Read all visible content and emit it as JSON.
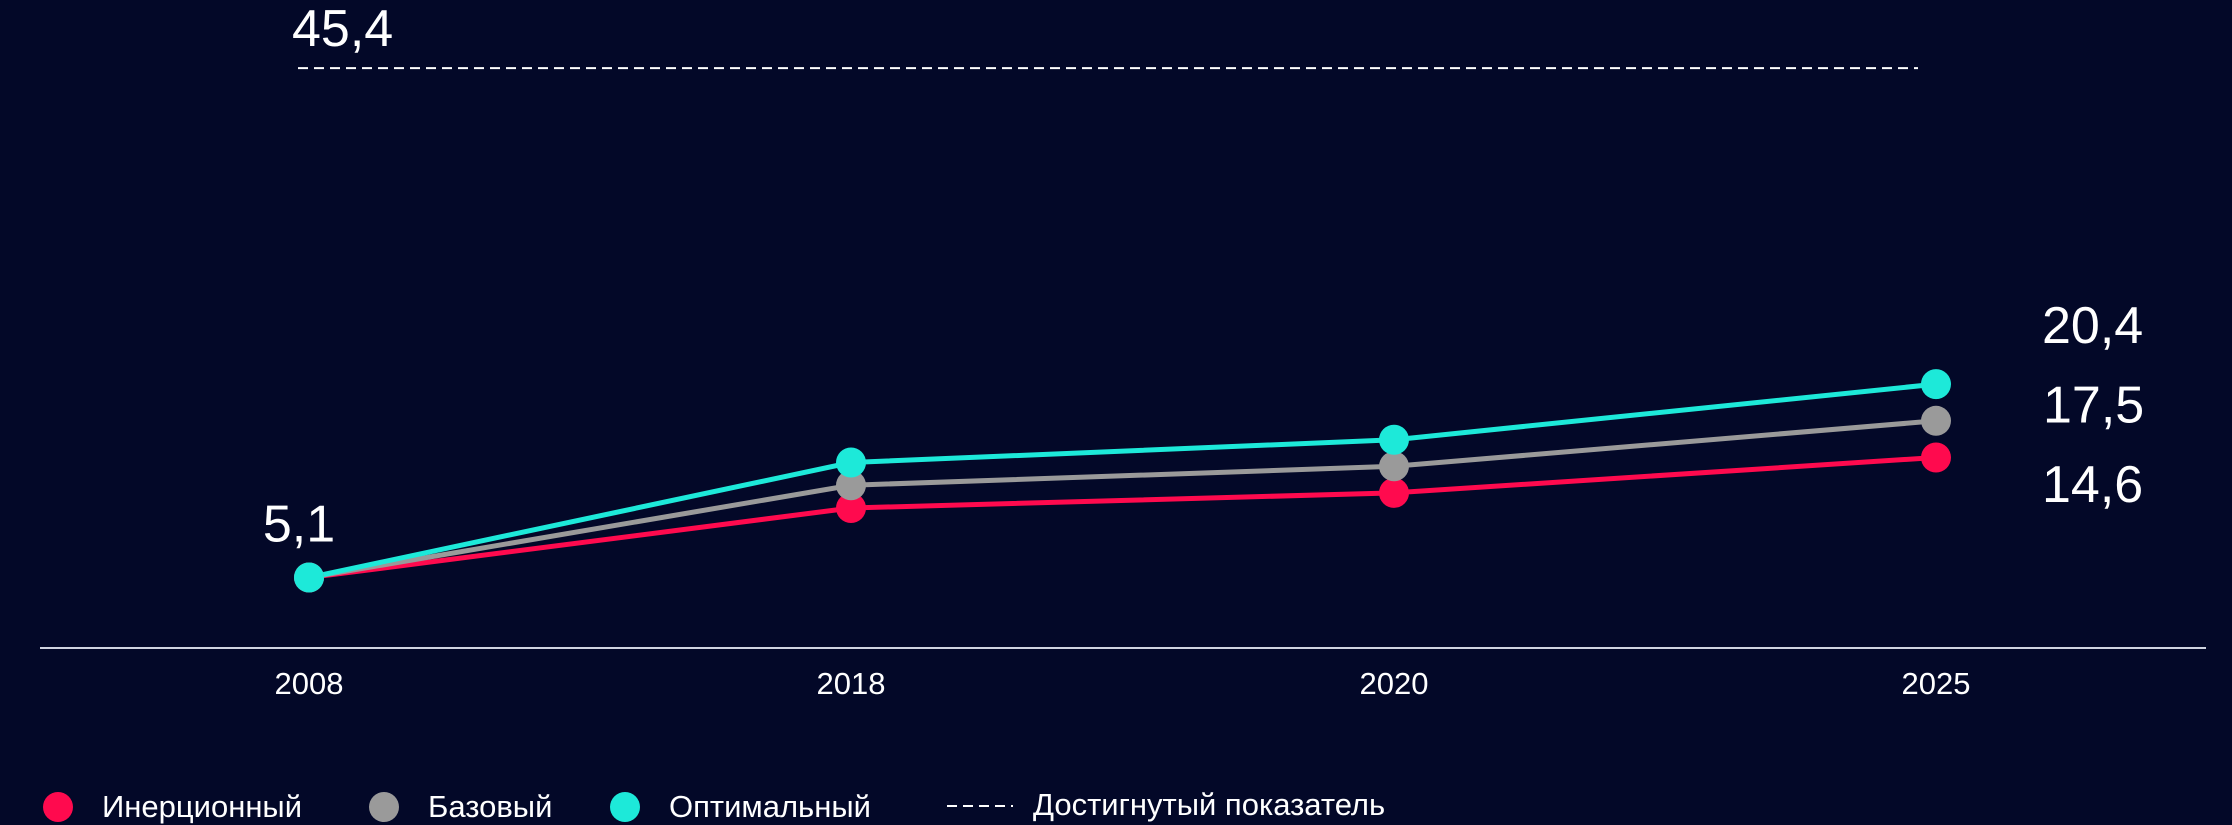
{
  "chart_data": {
    "type": "line",
    "categories": [
      "2008",
      "2018",
      "2020",
      "2025"
    ],
    "series": [
      {
        "name": "Инерционный",
        "color": "#ff0a4e",
        "values": [
          5.1,
          10.6,
          11.8,
          14.6
        ],
        "value_labels": [
          null,
          null,
          null,
          "14,6"
        ]
      },
      {
        "name": "Базовый",
        "color": "#9a9a9a",
        "values": [
          5.1,
          12.4,
          13.9,
          17.5
        ],
        "value_labels": [
          null,
          null,
          null,
          "17,5"
        ]
      },
      {
        "name": "Оптимальный",
        "color": "#1de9d9",
        "values": [
          5.1,
          14.2,
          16.0,
          20.4
        ],
        "value_labels": [
          "5,1",
          null,
          null,
          "20,4"
        ]
      }
    ],
    "reference": {
      "name": "Достигнутый показатель",
      "value": 45.4,
      "label": "45,4"
    },
    "ylim": [
      0,
      50
    ]
  }
}
